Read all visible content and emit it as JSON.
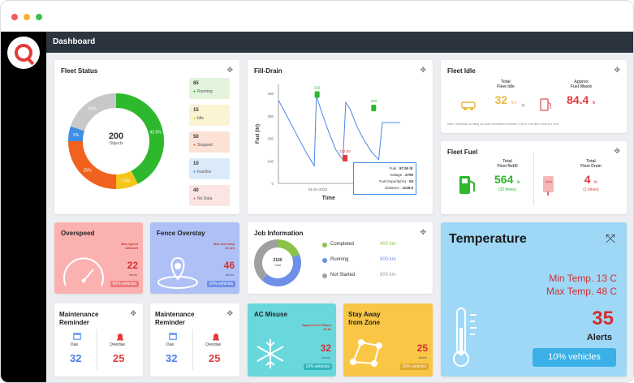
{
  "app": {
    "page_title": "Dashboard",
    "colors": {
      "close": "#f45b5b",
      "minimize": "#f7b32b",
      "maximize": "#3dc24a",
      "accent": "#e23b3b",
      "topbar": "#2c3440"
    }
  },
  "fleet_status": {
    "title": "Fleet Status",
    "center_value": "200",
    "center_label": "Objects",
    "segments": [
      {
        "name": "Running",
        "value": 85,
        "pct_label": "42.5%",
        "color": "#2db82d"
      },
      {
        "name": "Idle",
        "value": 15,
        "pct_label": "7.5%",
        "color": "#f5c518"
      },
      {
        "name": "Stopped",
        "value": 50,
        "pct_label": "25%",
        "color": "#f0621e"
      },
      {
        "name": "Inactive",
        "value": 10,
        "pct_label": "5%",
        "color": "#3c8ee6"
      },
      {
        "name": "No Data",
        "value": 40,
        "pct_label": "20%",
        "color": "#c8c8c8"
      }
    ],
    "legend": [
      {
        "count": "85",
        "label": "Running",
        "bg": "#e3f4dd",
        "dot": "#2db82d"
      },
      {
        "count": "15",
        "label": "Idle",
        "bg": "#fcf3d2",
        "dot": "#f5c518"
      },
      {
        "count": "50",
        "label": "Stopped",
        "bg": "#fbe1d6",
        "dot": "#f0621e"
      },
      {
        "count": "10",
        "label": "Inactive",
        "bg": "#dbeaf9",
        "dot": "#3c8ee6"
      },
      {
        "count": "40",
        "label": "No Data",
        "bg": "#fbe5e3",
        "dot": "#e06c6c"
      }
    ]
  },
  "fill_drain": {
    "title": "Fill-Drain",
    "chart_data": {
      "type": "line",
      "ylabel": "Fuel (ltr)",
      "xlabel": "Time",
      "y_ticks": [
        "0",
        "100",
        "200",
        "300",
        "400"
      ],
      "x_tick": "01-01-2023",
      "ylim": [
        0,
        440
      ],
      "points": [
        [
          0,
          370
        ],
        [
          1,
          310
        ],
        [
          2,
          250
        ],
        [
          3,
          190
        ],
        [
          4,
          130
        ],
        [
          5,
          78
        ],
        [
          5.3,
          390
        ],
        [
          6,
          320
        ],
        [
          7,
          230
        ],
        [
          8,
          150
        ],
        [
          9,
          105
        ],
        [
          9.4,
          360
        ],
        [
          10,
          330
        ],
        [
          11,
          250
        ],
        [
          12,
          190
        ],
        [
          13,
          140
        ],
        [
          14,
          105
        ],
        [
          14.5,
          270
        ],
        [
          17,
          270
        ]
      ],
      "markers": [
        {
          "x": 5.4,
          "y": 395,
          "label": "292",
          "color": "#2db82d"
        },
        {
          "x": 9.3,
          "y": 112,
          "label": "212.50",
          "color": "#e23b3b"
        },
        {
          "x": 13.3,
          "y": 335,
          "label": "240",
          "color": "#2db82d"
        }
      ]
    },
    "tooltip": [
      {
        "k": "Fuel",
        "v": "97.50 ltr"
      },
      {
        "k": "Voltage",
        "v": "2709"
      },
      {
        "k": "Fuel Impurity(%)",
        "v": "00"
      },
      {
        "k": "Distance",
        "v": "1126.9"
      }
    ]
  },
  "fleet_idle": {
    "title": "Fleet Idle",
    "total_label": "Total",
    "total_sub": "Fleet Idle",
    "total_value": "32",
    "total_unit": "hrs",
    "waste_label": "Approx",
    "waste_sub": "Fuel Waste",
    "waste_value": "84.4",
    "waste_unit": "ltr",
    "note": "Note: Generally, an idling car uses somewhere between 1.89 to 2.64 liter of fuel per hour."
  },
  "fleet_fuel": {
    "title": "Fleet Fuel",
    "refill_label": "Total",
    "refill_sub": "Fleet Refill",
    "refill_value": "564",
    "refill_unit": "ltr",
    "refill_times": "(32 times)",
    "drain_label": "Total",
    "drain_sub": "Fleet Drain",
    "drain_value": "4",
    "drain_unit": "ltr",
    "drain_times": "(1 times)"
  },
  "overspeed": {
    "title": "Overspeed",
    "sub1": "Max Speed",
    "sub2": "120km/h",
    "value": "22",
    "unit": "Alerts",
    "pct": "60% vehicles"
  },
  "fence_overstay": {
    "title": "Fence Overstay",
    "sub1": "Max Overstay",
    "sub2": "24 hrs",
    "value": "46",
    "unit": "Alerts",
    "pct": "10% vehicles"
  },
  "job_information": {
    "title": "Job Information",
    "center_value": "2100",
    "center_label": "Total",
    "rows": [
      {
        "label": "Completed",
        "value": "400 km",
        "color": "#8bc34a"
      },
      {
        "label": "Running",
        "value": "900 km",
        "color": "#6d8fe8"
      },
      {
        "label": "Not Started",
        "value": "800 km",
        "color": "#a0a0a0"
      }
    ],
    "chart_values": [
      400,
      900,
      800
    ]
  },
  "temperature": {
    "title": "Temperature",
    "min": "Min Temp. 13 C",
    "max": "Max Temp. 48 C",
    "value": "35",
    "unit": "Alerts",
    "pct": "10% vehicles"
  },
  "maintenance1": {
    "title1": "Maintenance",
    "title2": "Reminder",
    "due_label": "Due",
    "due_value": "32",
    "overdue_label": "Overdue",
    "overdue_value": "25"
  },
  "maintenance2": {
    "title1": "Maintenance",
    "title2": "Reminder",
    "due_label": "Due",
    "due_value": "32",
    "overdue_label": "Overdue",
    "overdue_value": "25"
  },
  "ac_misuse": {
    "title": "AC Misuse",
    "sub1": "Approx Fuel Waste",
    "sub2": "22 ltr",
    "value": "32",
    "unit": "Hours",
    "pct": "10% vehicles"
  },
  "stay_away": {
    "title1": "Stay Away",
    "title2": "from Zone",
    "value": "25",
    "unit": "Alerts",
    "pct": "20% vehicles"
  }
}
